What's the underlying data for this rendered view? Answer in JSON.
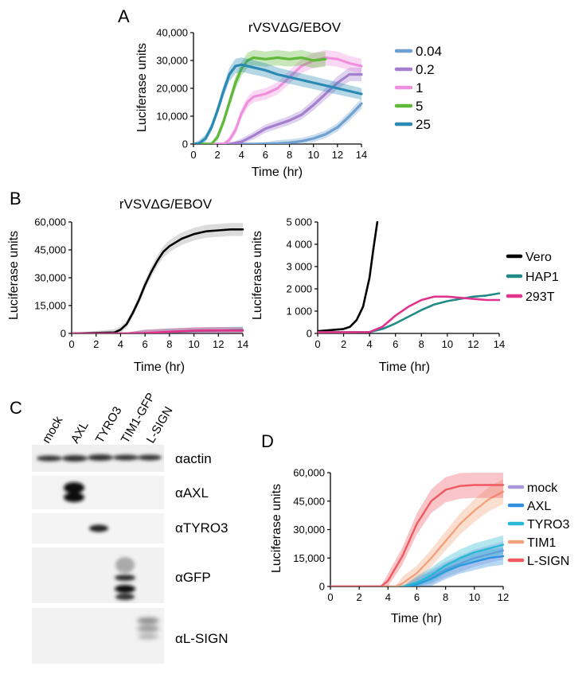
{
  "panel_labels": {
    "a": "A",
    "b": "B",
    "c": "C",
    "d": "D"
  },
  "colors": {
    "a": [
      "#6fa0d0",
      "#a47fcf",
      "#ef8fdd",
      "#5fb83a",
      "#2a8ab4"
    ],
    "b": [
      "#000000",
      "#1f8a88",
      "#e0338c"
    ],
    "d": [
      "#a897dd",
      "#2f8fe0",
      "#29b8d4",
      "#f2a27c",
      "#ef5a60"
    ]
  },
  "chart_data": [
    {
      "panel": "A",
      "type": "line",
      "title": "rVSVΔG/EBOV",
      "xlabel": "Time (hr)",
      "ylabel": "Luciferase units",
      "xlim": [
        0,
        14
      ],
      "ylim": [
        0,
        40000
      ],
      "x_ticks": [
        "0",
        "2",
        "4",
        "6",
        "8",
        "10",
        "12",
        "14"
      ],
      "y_ticks": [
        "0",
        "10,000",
        "20,000",
        "30,000",
        "40,000"
      ],
      "legend": "right",
      "series": [
        {
          "name": "0.04",
          "x": [
            0,
            5,
            7,
            8,
            9,
            10,
            11,
            12,
            13,
            14
          ],
          "values": [
            0,
            0,
            200,
            500,
            1000,
            2000,
            3500,
            6000,
            10000,
            14500
          ]
        },
        {
          "name": "0.2",
          "x": [
            0,
            3,
            4,
            5,
            6,
            7,
            8,
            9,
            10,
            11,
            12,
            13,
            14
          ],
          "values": [
            0,
            0,
            800,
            3000,
            5500,
            7000,
            8500,
            10500,
            14000,
            18000,
            22000,
            25000,
            25000
          ]
        },
        {
          "name": "1",
          "x": [
            0,
            2.5,
            3,
            3.5,
            4,
            4.5,
            5,
            6,
            7,
            8,
            9,
            10,
            11,
            12,
            13,
            14
          ],
          "values": [
            0,
            0,
            1500,
            5000,
            11000,
            15000,
            17000,
            18000,
            20000,
            24000,
            28000,
            30000,
            31000,
            30500,
            29000,
            28000
          ]
        },
        {
          "name": "5",
          "x": [
            0,
            1.5,
            2,
            2.5,
            3,
            3.5,
            4,
            4.5,
            5,
            6,
            7,
            8,
            9,
            10,
            11
          ],
          "values": [
            0,
            0,
            2500,
            8000,
            15000,
            22000,
            27000,
            30000,
            31000,
            30500,
            31000,
            30500,
            31000,
            30000,
            30500
          ]
        },
        {
          "name": "25",
          "x": [
            0,
            0.5,
            1,
            1.5,
            2,
            2.5,
            3,
            3.5,
            4,
            5,
            6,
            7,
            8,
            9,
            10,
            11,
            12,
            13,
            14
          ],
          "values": [
            0,
            300,
            2000,
            6000,
            12000,
            19000,
            25000,
            28000,
            28500,
            27500,
            26500,
            25000,
            24000,
            23000,
            22000,
            21000,
            20000,
            19000,
            18000
          ]
        }
      ]
    },
    {
      "panel": "B-left",
      "type": "line",
      "title": "rVSVΔG/EBOV",
      "xlabel": "Time (hr)",
      "ylabel": "Luciferase units",
      "xlim": [
        0,
        14
      ],
      "ylim": [
        0,
        60000
      ],
      "x_ticks": [
        "0",
        "2",
        "4",
        "6",
        "8",
        "10",
        "12",
        "14"
      ],
      "y_ticks": [
        "0",
        "15,000",
        "30,000",
        "45,000",
        "60,000"
      ],
      "series": [
        {
          "name": "Vero",
          "x": [
            0,
            3.5,
            4,
            4.5,
            5,
            5.5,
            6,
            6.5,
            7,
            7.5,
            8,
            9,
            10,
            11,
            12,
            13,
            14
          ],
          "values": [
            0,
            500,
            2000,
            5000,
            11000,
            18000,
            26000,
            33000,
            39000,
            44000,
            47000,
            51000,
            53500,
            55000,
            55500,
            56000,
            56000
          ]
        },
        {
          "name": "HAP1",
          "x": [
            0,
            4,
            6,
            8,
            10,
            12,
            14
          ],
          "values": [
            0,
            0,
            100,
            700,
            1300,
            1600,
            1800
          ]
        },
        {
          "name": "293T",
          "x": [
            0,
            4,
            6,
            8,
            10,
            12,
            14
          ],
          "values": [
            0,
            0,
            200,
            900,
            1500,
            1600,
            1500
          ]
        }
      ]
    },
    {
      "panel": "B-right",
      "type": "line",
      "xlabel": "Time (hr)",
      "ylabel": "Luciferase units",
      "xlim": [
        0,
        14
      ],
      "ylim": [
        0,
        5000
      ],
      "x_ticks": [
        "0",
        "2",
        "4",
        "6",
        "8",
        "10",
        "12",
        "14"
      ],
      "y_ticks": [
        "0",
        "1 000",
        "2 000",
        "3 000",
        "4 000",
        "5 000"
      ],
      "legend": "right",
      "series": [
        {
          "name": "Vero",
          "x": [
            0,
            1,
            2,
            2.5,
            3,
            3.5,
            4,
            4.3,
            4.6
          ],
          "values": [
            100,
            150,
            200,
            300,
            600,
            1200,
            2500,
            3800,
            5000
          ]
        },
        {
          "name": "HAP1",
          "x": [
            0,
            4,
            5,
            6,
            7,
            8,
            9,
            10,
            11,
            12,
            13,
            14
          ],
          "values": [
            50,
            60,
            200,
            450,
            750,
            1050,
            1300,
            1450,
            1550,
            1650,
            1700,
            1800
          ]
        },
        {
          "name": "293T",
          "x": [
            0,
            4,
            5,
            6,
            7,
            8,
            9,
            10,
            11,
            12,
            13,
            14
          ],
          "values": [
            50,
            60,
            300,
            800,
            1200,
            1500,
            1650,
            1650,
            1600,
            1550,
            1500,
            1500
          ]
        }
      ]
    },
    {
      "panel": "D",
      "type": "line",
      "xlabel": "Time (hr)",
      "ylabel": "Luciferase units",
      "xlim": [
        0,
        12
      ],
      "ylim": [
        0,
        60000
      ],
      "x_ticks": [
        "0",
        "2",
        "4",
        "6",
        "8",
        "10",
        "12"
      ],
      "y_ticks": [
        "0",
        "15,000",
        "30,000",
        "45,000",
        "60,000"
      ],
      "legend": "right",
      "series": [
        {
          "name": "mock",
          "x": [
            0,
            5,
            6,
            7,
            8,
            9,
            10,
            11,
            12
          ],
          "values": [
            0,
            0,
            1500,
            5000,
            9000,
            12000,
            15000,
            17000,
            19000
          ]
        },
        {
          "name": "AXL",
          "x": [
            0,
            5,
            6,
            7,
            8,
            9,
            10,
            11,
            12
          ],
          "values": [
            0,
            0,
            1000,
            4000,
            8000,
            11000,
            13000,
            15000,
            16000
          ]
        },
        {
          "name": "TYRO3",
          "x": [
            0,
            5,
            6,
            7,
            8,
            9,
            10,
            11,
            12
          ],
          "values": [
            0,
            0,
            2000,
            6000,
            11000,
            15000,
            18000,
            20000,
            22000
          ]
        },
        {
          "name": "TIM1",
          "x": [
            0,
            4.5,
            5,
            6,
            7,
            8,
            9,
            10,
            11,
            12
          ],
          "values": [
            0,
            0,
            1500,
            7000,
            15000,
            24000,
            33000,
            40000,
            46000,
            50000
          ]
        },
        {
          "name": "L-SIGN",
          "x": [
            0,
            3.5,
            4,
            5,
            6,
            7,
            8,
            9,
            10,
            11,
            12
          ],
          "values": [
            0,
            0,
            3000,
            16000,
            33000,
            45000,
            51000,
            53000,
            53500,
            53500,
            53500
          ]
        }
      ]
    }
  ],
  "blot": {
    "lanes": [
      "mock",
      "AXL",
      "TYRO3",
      "TIM1-GFP",
      "L-SIGN"
    ],
    "rows": [
      {
        "label": "αactin"
      },
      {
        "label": "αAXL"
      },
      {
        "label": "αTYRO3"
      },
      {
        "label": "αGFP"
      },
      {
        "label": "αL-SIGN"
      }
    ]
  }
}
